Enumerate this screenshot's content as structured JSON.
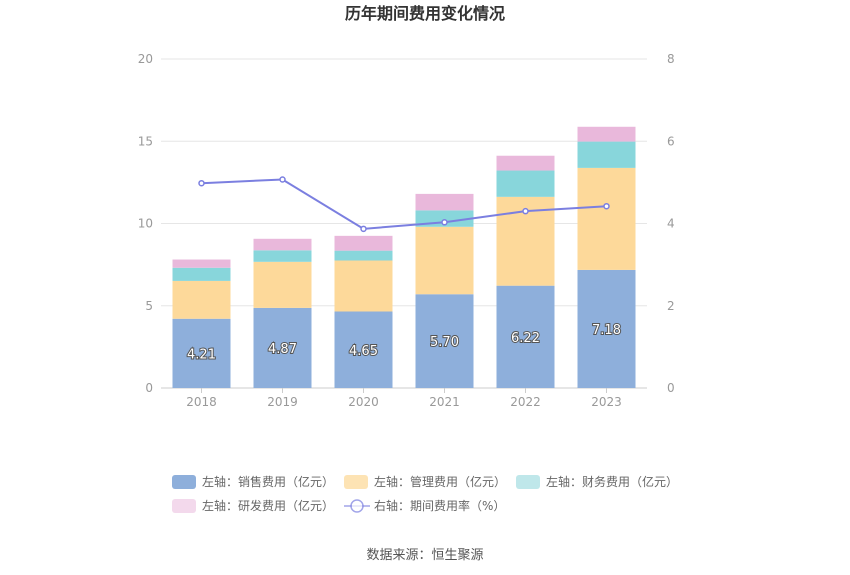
{
  "chart_data": {
    "type": "bar",
    "title": "历年期间费用变化情况",
    "source": "数据来源：恒生聚源",
    "categories": [
      "2018",
      "2019",
      "2020",
      "2021",
      "2022",
      "2023"
    ],
    "left_axis": {
      "ylim": [
        0,
        20
      ],
      "ticks": [
        "0",
        "5",
        "10",
        "15",
        "20"
      ]
    },
    "right_axis": {
      "ylim": [
        0,
        8
      ],
      "ticks": [
        "0",
        "2",
        "4",
        "6",
        "8"
      ]
    },
    "grid": true,
    "legend_position": "bottom",
    "stacked": true,
    "series": [
      {
        "name": "左轴：销售费用（亿元）",
        "axis": "left",
        "color": "#8eafdb",
        "values": [
          4.21,
          4.87,
          4.65,
          5.7,
          6.22,
          7.18
        ],
        "labels": [
          "4.21",
          "4.87",
          "4.65",
          "5.70",
          "6.22",
          "7.18"
        ]
      },
      {
        "name": "左轴：管理费用（亿元）",
        "axis": "left",
        "color": "#fdd99a",
        "values": [
          2.3,
          2.8,
          3.1,
          4.1,
          5.4,
          6.2
        ]
      },
      {
        "name": "左轴：财务费用（亿元）",
        "axis": "left",
        "color": "#88d6db",
        "values": [
          0.8,
          0.7,
          0.6,
          1.0,
          1.6,
          1.6
        ]
      },
      {
        "name": "左轴：研发费用（亿元）",
        "axis": "left",
        "color": "#e9b8db",
        "values": [
          0.5,
          0.7,
          0.9,
          1.0,
          0.9,
          0.9
        ]
      },
      {
        "name": "右轴：期间费用率（%）",
        "axis": "right",
        "type": "line",
        "color": "#7b7fe0",
        "values": [
          4.98,
          5.07,
          3.87,
          4.03,
          4.3,
          4.42
        ]
      }
    ],
    "legend_colors": {
      "left_0": "#8eafdb",
      "left_1": "#fde3b4",
      "left_2": "#bfe7ea",
      "left_3": "#f3d9ec"
    }
  }
}
